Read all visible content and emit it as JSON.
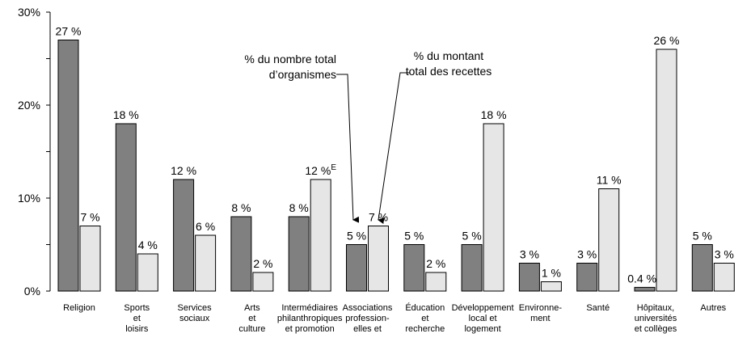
{
  "chart_data": {
    "type": "bar",
    "categories": [
      "Religion",
      "Sports\net\nloisirs",
      "Services\nsociaux",
      "Arts\net\nculture",
      "Intermédiaires\nphilanthropiques\net promotion",
      "Associations\nprofession-\nelles et",
      "Éducation\net\nrecherche",
      "Développement\nlocal et\nlogement",
      "Environne-\nment",
      "Santé",
      "Hôpitaux,\nuniversités\net collèges",
      "Autres"
    ],
    "series": [
      {
        "name": "% du nombre total\nd’organismes",
        "color": "#808080",
        "values": [
          27,
          18,
          12,
          8,
          8,
          5,
          5,
          5,
          3,
          3,
          0.4,
          5
        ],
        "value_labels": [
          "27 %",
          "18 %",
          "12 %",
          "8 %",
          "8 %",
          "5 %",
          "5 %",
          "5 %",
          "3 %",
          "3 %",
          "0.4 %E",
          "5 %"
        ]
      },
      {
        "name": "% du montant\ntotal des recettes",
        "color": "#e6e6e6",
        "values": [
          7,
          4,
          6,
          2,
          12,
          7,
          2,
          18,
          1,
          11,
          26,
          3
        ],
        "value_labels": [
          "7 %",
          "4 %",
          "6 %",
          "2 %",
          "12 %E",
          "7 %",
          "2 %",
          "18 %",
          "1 %",
          "11 %",
          "26 %",
          "3 %"
        ]
      }
    ],
    "ylim": [
      0,
      30
    ],
    "yticks": [
      {
        "value": 0,
        "label": "0%"
      },
      {
        "value": 10,
        "label": "10%"
      },
      {
        "value": 20,
        "label": "20%"
      },
      {
        "value": 30,
        "label": "30%"
      }
    ],
    "yminor": [
      5,
      15,
      25
    ]
  }
}
